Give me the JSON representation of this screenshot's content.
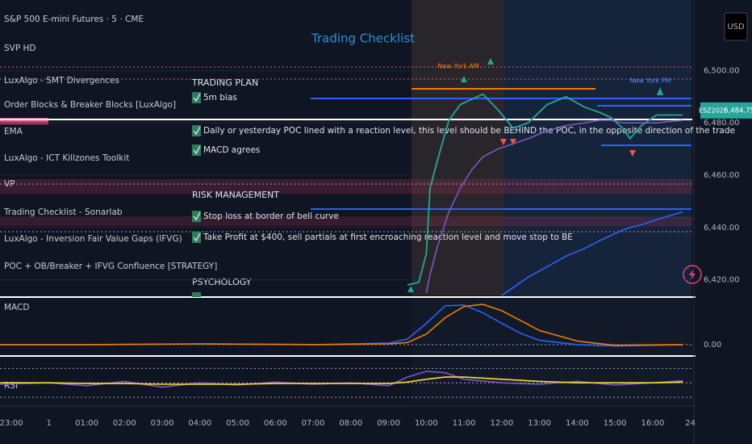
{
  "header": {
    "symbol": "S&P 500 E-mini Futures · 5 · CME",
    "currency": "USD"
  },
  "indicators": [
    "SVP HD",
    "LuxAlgo - SMT Divergences",
    "Order Blocks & Breaker Blocks [LuxAlgo]",
    "EMA",
    "LuxAlgo - ICT Killzones Toolkit",
    "VP",
    "Trading Checklist - Sonarlab",
    "LuxAlgo - Inversion Fair Value Gaps (IFVG)",
    "POC + OB/Breaker + IFVG Confluence [STRATEGY]"
  ],
  "checklist": {
    "title": "Trading Checklist",
    "sections": [
      {
        "heading": "TRADING PLAN",
        "items": [
          "5m bias",
          "Daily or yesterday POC lined with a reaction level, this level should be BEHIND the POC, in the opposite direction of the trade",
          "MACD agrees"
        ]
      },
      {
        "heading": "RISK MANAGEMENT",
        "items": [
          "Stop loss at border of bell curve",
          "Take Profit at $400, sell partials at first encroaching reaction level and move stop to BE"
        ]
      },
      {
        "heading": "PSYCHOLOGY"
      }
    ]
  },
  "sessions": [
    "New York AM",
    "New York PM"
  ],
  "pane_labels": {
    "macd": "MACD",
    "rsi": "RSI"
  },
  "chart_data": [
    {
      "type": "line",
      "symbol_label": "ESZ2025",
      "last_price": {
        "value": 6484.75,
        "label": "6,484.75"
      },
      "x": [
        10.5,
        10.8,
        11.0,
        11.1,
        11.3,
        11.6,
        11.9,
        12.2,
        12.5,
        12.9,
        13.3,
        13.7,
        14.2,
        14.7,
        15.2,
        15.6,
        15.9,
        16.2,
        16.4,
        16.7,
        17.1,
        17.8
      ],
      "xlim": [
        -0.3,
        18.05
      ],
      "xticks": [
        {
          "value": 0,
          "label": "23:00"
        },
        1,
        {
          "value": 2,
          "label": "01:00"
        },
        {
          "value": 3,
          "label": "02:00"
        },
        {
          "value": 4,
          "label": "03:00"
        },
        {
          "value": 5,
          "label": "04:00"
        },
        {
          "value": 6,
          "label": "05:00"
        },
        {
          "value": 7,
          "label": "06:00"
        },
        {
          "value": 8,
          "label": "07:00"
        },
        {
          "value": 9,
          "label": "08:00"
        },
        {
          "value": 10,
          "label": "09:00"
        },
        {
          "value": 11,
          "label": "10:00"
        },
        {
          "value": 12,
          "label": "11:00"
        },
        {
          "value": 13,
          "label": "12:00"
        },
        {
          "value": 14,
          "label": "13:00"
        },
        {
          "value": 15,
          "label": "14:00"
        },
        {
          "value": 16,
          "label": "15:00"
        },
        {
          "value": 17,
          "label": "16:00"
        },
        {
          "value": 18,
          "label": "24"
        }
      ],
      "ylim": [
        6414,
        6527
      ],
      "yticks": [
        {
          "value": 6500,
          "label": "6,500.00"
        },
        {
          "value": 6480,
          "label": "6,480.00"
        },
        {
          "value": 6460,
          "label": "6,460.00"
        },
        {
          "value": 6440,
          "label": "6,440.00"
        },
        {
          "value": 6420,
          "label": "6,420.00"
        }
      ],
      "series": [
        {
          "color": "#26a69a",
          "values": [
            6418,
            6419,
            6430,
            6455,
            6466,
            6481,
            6487,
            6489,
            6491,
            6485,
            6478,
            6480,
            6487,
            6490,
            6486,
            6484,
            6482,
            6478,
            6474,
            6479,
            6483,
            6483
          ]
        },
        {
          "color": "#7e57c2",
          "values": [
            null,
            null,
            6415,
            6422,
            6433,
            6446,
            6455,
            6462,
            6467,
            6470,
            6472,
            6474,
            6477,
            6479,
            6480,
            6481,
            6481,
            6480,
            6480,
            6480,
            6480,
            6481
          ]
        },
        {
          "color": "#2962ff",
          "values": [
            null,
            null,
            null,
            null,
            null,
            null,
            null,
            null,
            null,
            6413,
            6417,
            6421,
            6425,
            6429,
            6432,
            6435,
            6437,
            6439,
            6440,
            6441,
            6443,
            6446
          ]
        }
      ]
    },
    {
      "type": "line",
      "x": [
        -0.3,
        2,
        5,
        8,
        10,
        10.5,
        11.0,
        11.5,
        12.0,
        12.5,
        13.0,
        13.5,
        14.0,
        15,
        16,
        17.8
      ],
      "xlim": [
        -0.3,
        18.05
      ],
      "ylim": [
        -1.5,
        6.5
      ],
      "yticks": [
        {
          "value": 0,
          "label": "0.00"
        }
      ],
      "series": [
        {
          "color": "#2962ff",
          "values": [
            0,
            0,
            0.1,
            0,
            0.2,
            0.8,
            3,
            5.5,
            5.6,
            4.5,
            3,
            1.6,
            0.6,
            0,
            -0.2,
            0
          ]
        },
        {
          "color": "#f57c00",
          "values": [
            0,
            0,
            0.1,
            0,
            0.1,
            0.3,
            1.5,
            3.8,
            5.4,
            5.7,
            4.8,
            3.4,
            2,
            0.5,
            -0.1,
            0
          ]
        }
      ]
    },
    {
      "type": "line",
      "x": [
        -0.3,
        1,
        2,
        3,
        4,
        5,
        6,
        7,
        8,
        9,
        10,
        10.5,
        11,
        11.5,
        12,
        13,
        14,
        15,
        16,
        17,
        17.8
      ],
      "xlim": [
        -0.3,
        18.05
      ],
      "ylim": [
        20,
        85
      ],
      "bands": [
        30,
        50,
        70
      ],
      "series": [
        {
          "color": "#7e57c2",
          "values": [
            48,
            50,
            46,
            52,
            44,
            50,
            47,
            51,
            48,
            50,
            46,
            58,
            66,
            64,
            55,
            50,
            48,
            52,
            47,
            50,
            53
          ]
        },
        {
          "color": "#fdd835",
          "values": [
            50,
            50,
            49,
            49,
            48,
            48,
            48,
            49,
            49,
            49,
            49,
            51,
            55,
            58,
            58,
            55,
            52,
            50,
            50,
            50,
            51
          ]
        }
      ]
    }
  ]
}
